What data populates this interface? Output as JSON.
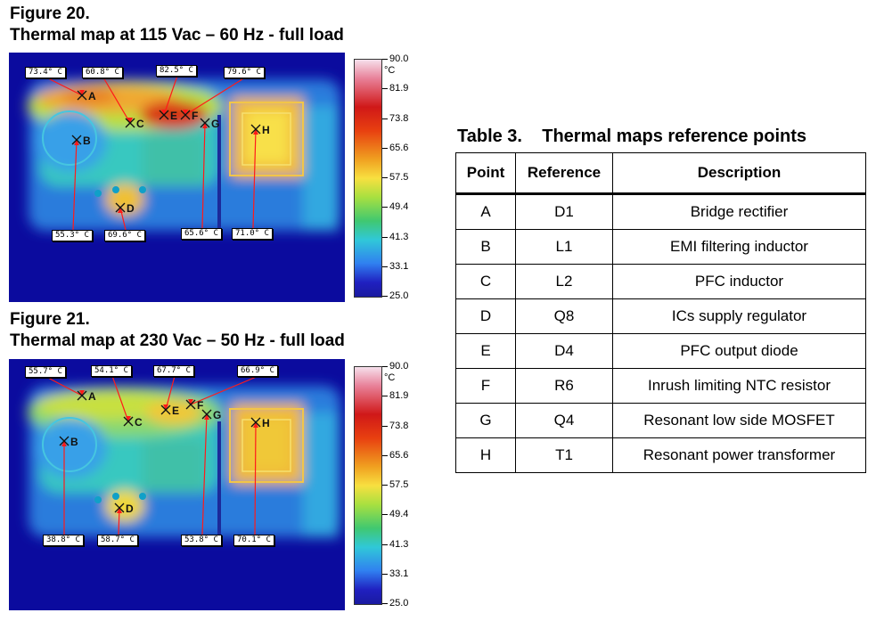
{
  "figure20": {
    "number": "Figure 20.",
    "caption": "Thermal map at 115 Vac – 60 Hz - full load",
    "callouts": {
      "A": "73.4° C",
      "C": "60.8° C",
      "E": "82.5° C",
      "F": "79.6° C",
      "B": "55.3° C",
      "D": "69.6° C",
      "G": "65.6° C",
      "H": "71.0° C"
    }
  },
  "figure21": {
    "number": "Figure 21.",
    "caption": "Thermal map at 230 Vac – 50 Hz - full load",
    "callouts": {
      "A": "55.7° C",
      "C": "54.1° C",
      "E": "67.7° C",
      "F": "66.9° C",
      "B": "38.8° C",
      "D": "58.7° C",
      "G": "53.8° C",
      "H": "70.1° C"
    }
  },
  "color_scale": {
    "unit": "°C",
    "ticks": [
      "90.0",
      "81.9",
      "73.8",
      "65.6",
      "57.5",
      "49.4",
      "41.3",
      "33.1",
      "25.0"
    ]
  },
  "point_letters": [
    "A",
    "B",
    "C",
    "D",
    "E",
    "F",
    "G",
    "H"
  ],
  "table": {
    "number": "Table 3.",
    "title": "Thermal maps reference points",
    "headers": [
      "Point",
      "Reference",
      "Description"
    ],
    "rows": [
      [
        "A",
        "D1",
        "Bridge rectifier"
      ],
      [
        "B",
        "L1",
        "EMI filtering inductor"
      ],
      [
        "C",
        "L2",
        "PFC inductor"
      ],
      [
        "D",
        "Q8",
        "ICs supply regulator"
      ],
      [
        "E",
        "D4",
        "PFC output diode"
      ],
      [
        "F",
        "R6",
        "Inrush limiting NTC resistor"
      ],
      [
        "G",
        "Q4",
        "Resonant low side MOSFET"
      ],
      [
        "H",
        "T1",
        "Resonant power transformer"
      ]
    ]
  }
}
